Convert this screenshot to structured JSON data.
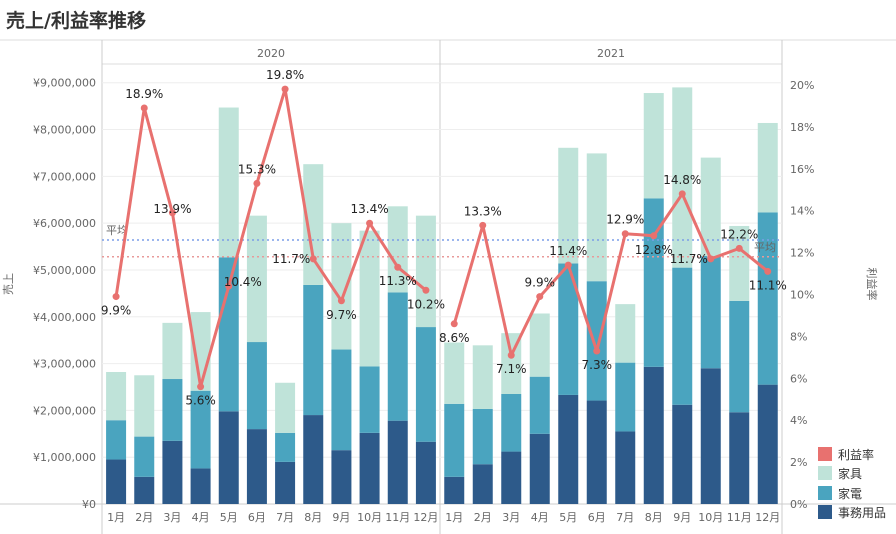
{
  "page_title": "売上/利益率推移",
  "chart_data": {
    "type": "bar",
    "title": "売上/利益率推移",
    "ylabel_left": "売上",
    "ylabel_right": "利益率",
    "ylim_left": [
      0,
      9400000
    ],
    "ylim_right": [
      0,
      21
    ],
    "y_ticks_left": [
      "¥9,000,000",
      "¥8,000,000",
      "¥7,000,000",
      "¥6,000,000",
      "¥5,000,000",
      "¥4,000,000",
      "¥3,000,000",
      "¥2,000,000",
      "¥1,000,000",
      "¥0"
    ],
    "y_ticks_right": [
      "20%",
      "18%",
      "16%",
      "14%",
      "12%",
      "10%",
      "8%",
      "6%",
      "4%",
      "2%",
      "0%"
    ],
    "panels": [
      {
        "year": "2020",
        "categories": [
          "1月",
          "2月",
          "3月",
          "4月",
          "5月",
          "6月",
          "7月",
          "8月",
          "9月",
          "10月",
          "11月",
          "12月"
        ],
        "series": [
          {
            "name": "事務用品",
            "color": "#2d5a8a",
            "values": [
              950000,
              580000,
              1350000,
              760000,
              1980000,
              1600000,
              900000,
              1900000,
              1150000,
              1520000,
              1780000,
              1330000
            ]
          },
          {
            "name": "家電",
            "color": "#4aa4bf",
            "values": [
              840000,
              860000,
              1320000,
              1660000,
              3290000,
              1860000,
              620000,
              2780000,
              2150000,
              1420000,
              2740000,
              2450000
            ]
          },
          {
            "name": "家具",
            "color": "#bfe3d9",
            "values": [
              1030000,
              1310000,
              1200000,
              1680000,
              3200000,
              2700000,
              1070000,
              2580000,
              2700000,
              2900000,
              1840000,
              2380000
            ]
          }
        ],
        "profit_rate": [
          9.9,
          18.9,
          13.9,
          5.6,
          10.4,
          15.3,
          19.8,
          11.7,
          9.7,
          13.4,
          11.3,
          10.2
        ],
        "profit_labels": [
          "9.9%",
          "18.9%",
          "13.9%",
          "5.6%",
          "10.4%",
          "15.3%",
          "19.8%",
          "11.7%",
          "9.7%",
          "13.4%",
          "11.3%",
          "10.2%"
        ]
      },
      {
        "year": "2021",
        "categories": [
          "1月",
          "2月",
          "3月",
          "4月",
          "5月",
          "6月",
          "7月",
          "8月",
          "9月",
          "10月",
          "11月",
          "12月"
        ],
        "series": [
          {
            "name": "事務用品",
            "color": "#2d5a8a",
            "values": [
              580000,
              850000,
              1120000,
              1500000,
              2330000,
              2210000,
              1550000,
              2930000,
              2120000,
              2900000,
              1960000,
              2550000
            ]
          },
          {
            "name": "家電",
            "color": "#4aa4bf",
            "values": [
              1560000,
              1180000,
              1230000,
              1220000,
              2810000,
              2550000,
              1470000,
              3600000,
              2930000,
              2400000,
              2380000,
              3680000
            ]
          },
          {
            "name": "家具",
            "color": "#bfe3d9",
            "values": [
              1310000,
              1360000,
              1300000,
              1350000,
              2470000,
              2730000,
              1250000,
              2250000,
              3850000,
              2100000,
              1600000,
              1910000
            ]
          }
        ],
        "profit_rate": [
          8.6,
          13.3,
          7.1,
          9.9,
          11.4,
          7.3,
          12.9,
          12.8,
          14.8,
          11.7,
          12.2,
          11.1
        ],
        "profit_labels": [
          "8.6%",
          "13.3%",
          "7.1%",
          "9.9%",
          "11.4%",
          "7.3%",
          "12.9%",
          "12.8%",
          "14.8%",
          "11.7%",
          "12.2%",
          "11.1%"
        ]
      }
    ],
    "reference_lines": [
      {
        "label": "平均",
        "axis": "left",
        "value": 5640000,
        "color": "#7b9ee8"
      },
      {
        "label": "平均",
        "axis": "right",
        "value": 11.8,
        "color": "#e89a9a"
      }
    ],
    "line_color": "#e8716f",
    "legend": [
      {
        "label": "利益率",
        "color": "#e8716f"
      },
      {
        "label": "家具",
        "color": "#bfe3d9"
      },
      {
        "label": "家電",
        "color": "#4aa4bf"
      },
      {
        "label": "事務用品",
        "color": "#2d5a8a"
      }
    ],
    "legend_position": "bottom-right"
  }
}
